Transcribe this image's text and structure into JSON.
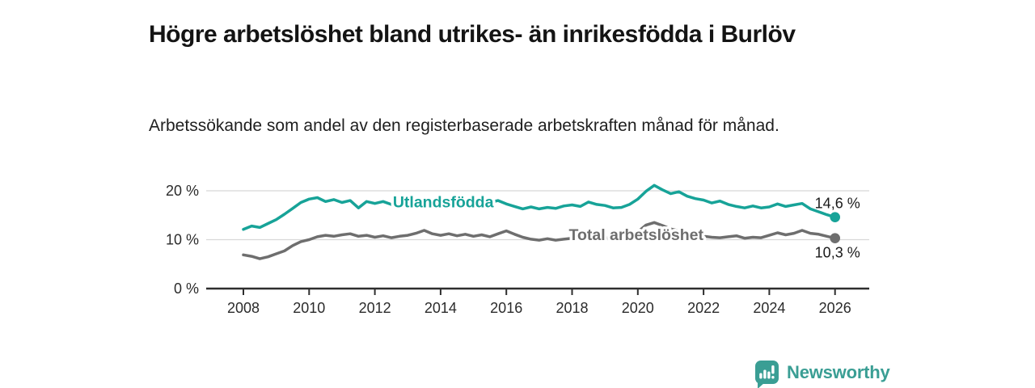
{
  "header": {
    "title": "Högre arbetslöshet bland utrikes- än inrikesfödda i Burlöv",
    "subtitle": "Arbetssökande som andel av den registerbaserade arbetskraften månad för månad."
  },
  "branding": {
    "name": "Newsworthy",
    "icon": "newsworthy-speech-bubble-bars-icon",
    "color": "#3a9e94"
  },
  "chart_data": {
    "type": "line",
    "title": "Högre arbetslöshet bland utrikes- än inrikesfödda i Burlöv",
    "subtitle": "Arbetssökande som andel av den registerbaserade arbetskraften månad för månad.",
    "xlabel": "",
    "ylabel": "",
    "xlim": [
      2006.9,
      2027.1
    ],
    "ylim": [
      0,
      22.3
    ],
    "grid": "horizontal",
    "legend_position": "inline",
    "x_ticks": [
      {
        "label": "2008",
        "value": 2008
      },
      {
        "label": "2010",
        "value": 2010
      },
      {
        "label": "2012",
        "value": 2012
      },
      {
        "label": "2014",
        "value": 2014
      },
      {
        "label": "2016",
        "value": 2016
      },
      {
        "label": "2018",
        "value": 2018
      },
      {
        "label": "2020",
        "value": 2020
      },
      {
        "label": "2022",
        "value": 2022
      },
      {
        "label": "2024",
        "value": 2024
      },
      {
        "label": "2026",
        "value": 2026
      }
    ],
    "y_ticks": [
      {
        "label": "0 %",
        "value": 0
      },
      {
        "label": "10 %",
        "value": 10
      },
      {
        "label": "20 %",
        "value": 20
      }
    ],
    "x": [
      2008,
      2008.25,
      2008.5,
      2008.75,
      2009,
      2009.25,
      2009.5,
      2009.75,
      2010,
      2010.25,
      2010.5,
      2010.75,
      2011,
      2011.25,
      2011.5,
      2011.75,
      2012,
      2012.25,
      2012.5,
      2012.75,
      2013,
      2013.25,
      2013.5,
      2013.75,
      2014,
      2014.25,
      2014.5,
      2014.75,
      2015,
      2015.25,
      2015.5,
      2015.75,
      2016,
      2016.25,
      2016.5,
      2016.75,
      2017,
      2017.25,
      2017.5,
      2017.75,
      2018,
      2018.25,
      2018.5,
      2018.75,
      2019,
      2019.25,
      2019.5,
      2019.75,
      2020,
      2020.25,
      2020.5,
      2020.75,
      2021,
      2021.25,
      2021.5,
      2021.75,
      2022,
      2022.25,
      2022.5,
      2022.75,
      2023,
      2023.25,
      2023.5,
      2023.75,
      2024,
      2024.25,
      2024.5,
      2024.75,
      2025,
      2025.25,
      2025.5,
      2025.75,
      2026
    ],
    "series": [
      {
        "name": "Utlandsfödda",
        "color": "#17a398",
        "end_label": "14,6 %",
        "end_value": 14.6,
        "end_label_position": "above",
        "values": [
          12.1,
          12.8,
          12.5,
          13.3,
          14.1,
          15.2,
          16.4,
          17.6,
          18.3,
          18.6,
          17.8,
          18.2,
          17.6,
          18.0,
          16.5,
          17.8,
          17.4,
          17.8,
          17.2,
          17.6,
          17.9,
          17.3,
          17.7,
          17.1,
          17.4,
          17.8,
          17.2,
          17.6,
          17.9,
          17.3,
          17.6,
          18.0,
          17.3,
          16.8,
          16.3,
          16.7,
          16.3,
          16.6,
          16.4,
          16.9,
          17.1,
          16.8,
          17.7,
          17.2,
          17.0,
          16.5,
          16.6,
          17.2,
          18.3,
          19.9,
          21.1,
          20.2,
          19.4,
          19.8,
          18.9,
          18.4,
          18.1,
          17.5,
          17.9,
          17.2,
          16.8,
          16.5,
          16.9,
          16.5,
          16.7,
          17.3,
          16.8,
          17.1,
          17.4,
          16.3,
          15.7,
          15.1,
          14.6
        ]
      },
      {
        "name": "Total arbetslöshet",
        "color": "#6e6e6e",
        "end_label": "10,3 %",
        "end_value": 10.3,
        "end_label_position": "below",
        "values": [
          6.9,
          6.6,
          6.1,
          6.5,
          7.1,
          7.7,
          8.8,
          9.6,
          10.0,
          10.6,
          10.9,
          10.7,
          11.0,
          11.2,
          10.7,
          10.9,
          10.5,
          10.8,
          10.4,
          10.7,
          10.9,
          11.3,
          11.9,
          11.2,
          10.9,
          11.2,
          10.8,
          11.1,
          10.7,
          11.0,
          10.6,
          11.2,
          11.8,
          11.1,
          10.5,
          10.1,
          9.9,
          10.2,
          9.9,
          10.1,
          10.3,
          10.1,
          10.4,
          10.2,
          10.4,
          10.3,
          10.6,
          10.9,
          11.6,
          13.0,
          13.5,
          12.9,
          12.2,
          11.8,
          11.4,
          11.0,
          10.7,
          10.5,
          10.4,
          10.6,
          10.8,
          10.3,
          10.5,
          10.4,
          10.9,
          11.4,
          11.0,
          11.3,
          11.9,
          11.3,
          11.1,
          10.7,
          10.3
        ]
      }
    ]
  }
}
